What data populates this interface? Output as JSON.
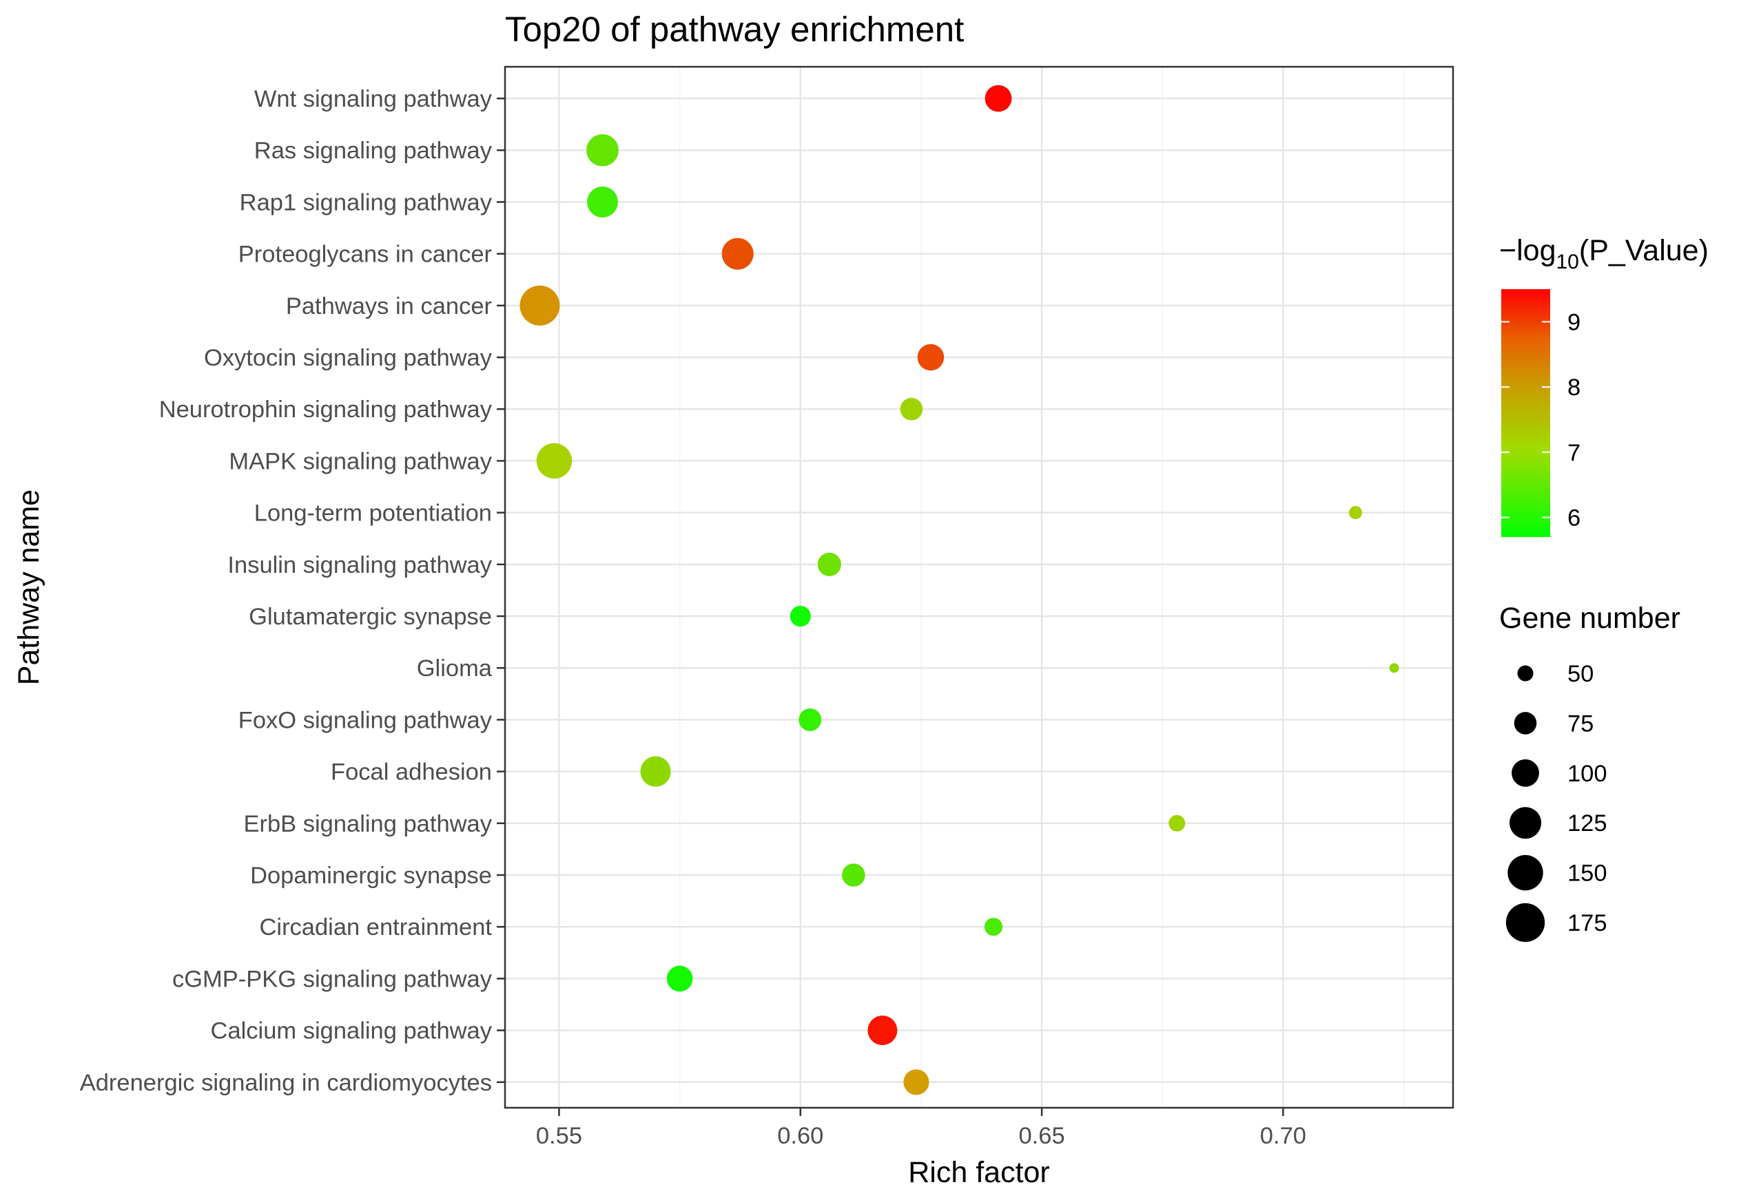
{
  "chart_data": {
    "type": "scatter",
    "title": "Top20 of pathway enrichment",
    "xlabel": "Rich factor",
    "ylabel": "Pathway name",
    "xlim": [
      0.5388,
      0.7352
    ],
    "xticks": [
      0.55,
      0.6,
      0.65,
      0.7
    ],
    "xtick_labels": [
      "0.55",
      "0.60",
      "0.65",
      "0.70"
    ],
    "grid": true,
    "categories": [
      "Wnt signaling pathway",
      "Ras signaling pathway",
      "Rap1 signaling pathway",
      "Proteoglycans in cancer",
      "Pathways in cancer",
      "Oxytocin signaling pathway",
      "Neurotrophin signaling pathway",
      "MAPK signaling pathway",
      "Long-term potentiation",
      "Insulin signaling pathway",
      "Glutamatergic synapse",
      "Glioma",
      "FoxO signaling pathway",
      "Focal adhesion",
      "ErbB signaling pathway",
      "Dopaminergic synapse",
      "Circadian entrainment",
      "cGMP-PKG signaling pathway",
      "Calcium signaling pathway",
      "Adrenergic signaling in cardiomyocytes"
    ],
    "points": [
      {
        "pathway": "Wnt signaling pathway",
        "rich_factor": 0.641,
        "gene_number": 96,
        "neg_log10_p": 9.45
      },
      {
        "pathway": "Ras signaling pathway",
        "rich_factor": 0.559,
        "gene_number": 128,
        "neg_log10_p": 6.65
      },
      {
        "pathway": "Rap1 signaling pathway",
        "rich_factor": 0.559,
        "gene_number": 120,
        "neg_log10_p": 6.3
      },
      {
        "pathway": "Proteoglycans in cancer",
        "rich_factor": 0.587,
        "gene_number": 125,
        "neg_log10_p": 8.75
      },
      {
        "pathway": "Pathways in cancer",
        "rich_factor": 0.546,
        "gene_number": 184,
        "neg_log10_p": 8.1
      },
      {
        "pathway": "Oxytocin signaling pathway",
        "rich_factor": 0.627,
        "gene_number": 95,
        "neg_log10_p": 8.8
      },
      {
        "pathway": "Neurotrophin signaling pathway",
        "rich_factor": 0.623,
        "gene_number": 75,
        "neg_log10_p": 7.2
      },
      {
        "pathway": "MAPK signaling pathway",
        "rich_factor": 0.549,
        "gene_number": 150,
        "neg_log10_p": 7.3
      },
      {
        "pathway": "Long-term potentiation",
        "rich_factor": 0.715,
        "gene_number": 42,
        "neg_log10_p": 7.3
      },
      {
        "pathway": "Insulin signaling pathway",
        "rich_factor": 0.606,
        "gene_number": 80,
        "neg_log10_p": 6.75
      },
      {
        "pathway": "Glutamatergic synapse",
        "rich_factor": 0.6,
        "gene_number": 68,
        "neg_log10_p": 5.85
      },
      {
        "pathway": "Glioma",
        "rich_factor": 0.723,
        "gene_number": 34,
        "neg_log10_p": 7.05
      },
      {
        "pathway": "FoxO signaling pathway",
        "rich_factor": 0.602,
        "gene_number": 76,
        "neg_log10_p": 6.2
      },
      {
        "pathway": "Focal adhesion",
        "rich_factor": 0.57,
        "gene_number": 117,
        "neg_log10_p": 7.05
      },
      {
        "pathway": "ErbB signaling pathway",
        "rich_factor": 0.678,
        "gene_number": 52,
        "neg_log10_p": 7.2
      },
      {
        "pathway": "Dopaminergic synapse",
        "rich_factor": 0.611,
        "gene_number": 78,
        "neg_log10_p": 6.55
      },
      {
        "pathway": "Circadian entrainment",
        "rich_factor": 0.64,
        "gene_number": 57,
        "neg_log10_p": 6.4
      },
      {
        "pathway": "cGMP-PKG signaling pathway",
        "rich_factor": 0.575,
        "gene_number": 92,
        "neg_log10_p": 5.9
      },
      {
        "pathway": "Calcium signaling pathway",
        "rich_factor": 0.617,
        "gene_number": 112,
        "neg_log10_p": 9.3
      },
      {
        "pathway": "Adrenergic signaling in cardiomyocytes",
        "rich_factor": 0.624,
        "gene_number": 90,
        "neg_log10_p": 8.0
      }
    ],
    "color_legend": {
      "title_prefix": "−log",
      "title_subscript": "10",
      "title_suffix": "(P_Value)",
      "min": 5.7,
      "max": 9.5,
      "ticks": [
        6,
        7,
        8,
        9
      ],
      "tick_labels": [
        "6",
        "7",
        "8",
        "9"
      ],
      "low_color": "#00ff00",
      "mid_color": "#c8c800",
      "high_color": "#ff0000"
    },
    "size_legend": {
      "title": "Gene number",
      "values": [
        50,
        75,
        100,
        125,
        150,
        175
      ],
      "labels": [
        "50",
        "75",
        "100",
        "125",
        "150",
        "175"
      ],
      "domain": [
        34,
        184
      ]
    },
    "legend_position": "right"
  }
}
